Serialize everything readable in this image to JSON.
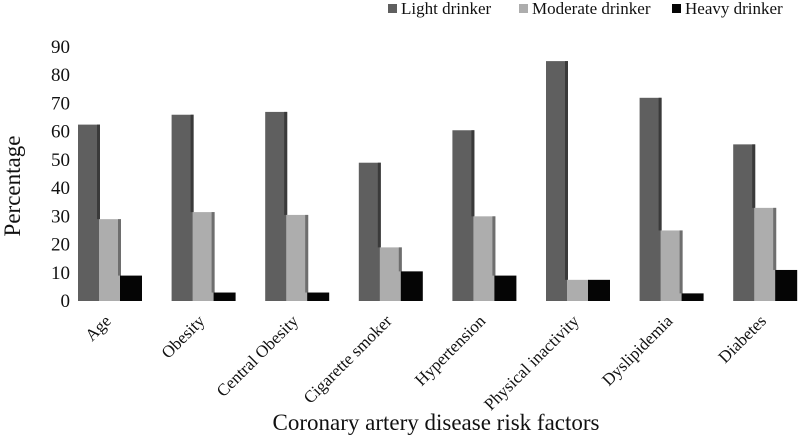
{
  "chart_data": {
    "type": "bar",
    "title": "",
    "xlabel": "Coronary artery disease risk factors",
    "ylabel": "Percentage",
    "ylim": [
      0,
      90
    ],
    "yticks": [
      0,
      10,
      20,
      30,
      40,
      50,
      60,
      70,
      80,
      90
    ],
    "grid": false,
    "legend_position": "top-right",
    "categories": [
      "Age",
      "Obesity",
      "Central Obesity",
      "Cigarette smoker",
      "Hypertension",
      "Physical inactivity",
      "Dyslipidemia",
      "Diabetes"
    ],
    "series": [
      {
        "name": "Light drinker",
        "color": "#5f5f5f",
        "shade": "#3a3a3a",
        "values": [
          62.5,
          66,
          67,
          49,
          60.5,
          85,
          72,
          55.5
        ]
      },
      {
        "name": "Moderate drinker",
        "color": "#adadad",
        "shade": "#6e6e6e",
        "values": [
          29,
          31.5,
          30.5,
          19,
          30,
          7.5,
          25,
          33
        ]
      },
      {
        "name": "Heavy drinker",
        "color": "#050505",
        "shade": "#050505",
        "values": [
          9,
          3,
          3,
          10.5,
          9,
          7.5,
          2.7,
          11
        ]
      }
    ]
  }
}
